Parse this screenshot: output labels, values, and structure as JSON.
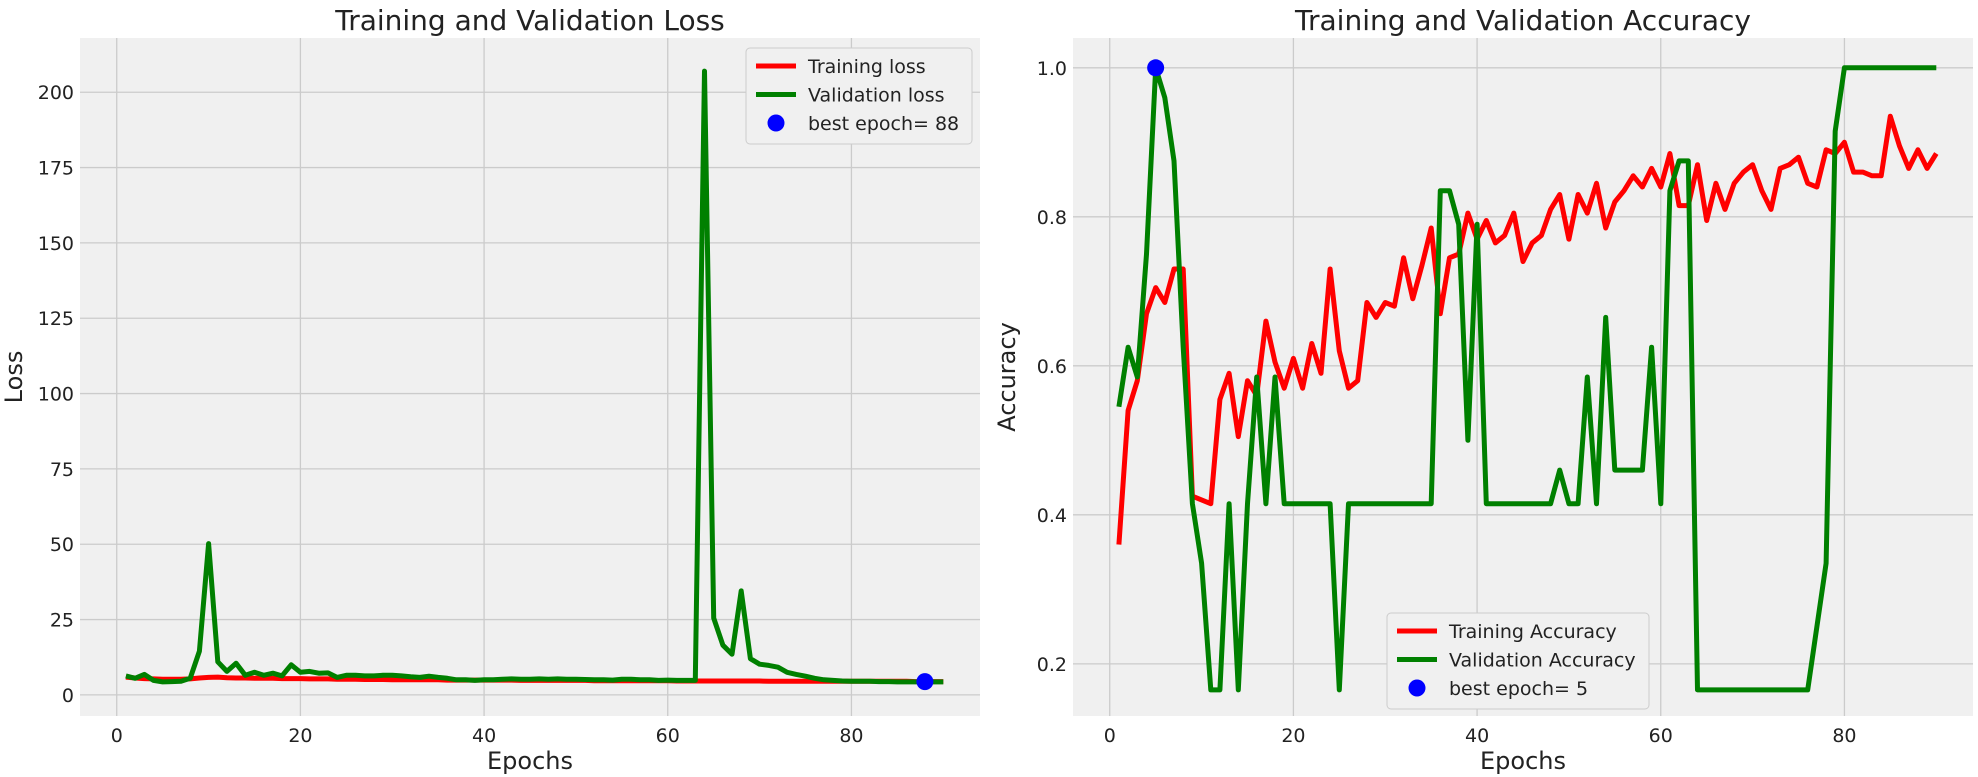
{
  "chart_data": [
    {
      "type": "line",
      "title": "Training and Validation Loss",
      "xlabel": "Epochs",
      "ylabel": "Loss",
      "xlim": [
        -4,
        94
      ],
      "ylim": [
        -7,
        218
      ],
      "xticks": [
        0,
        20,
        40,
        60,
        80
      ],
      "yticks": [
        0,
        25,
        50,
        75,
        100,
        125,
        150,
        175,
        200
      ],
      "grid": true,
      "legend_position": "top-right",
      "series": [
        {
          "name": "Training loss",
          "color": "#ff0000",
          "x": [
            1,
            2,
            3,
            4,
            5,
            6,
            7,
            8,
            9,
            10,
            11,
            12,
            13,
            14,
            15,
            16,
            17,
            18,
            19,
            20,
            21,
            22,
            23,
            24,
            25,
            26,
            27,
            28,
            29,
            30,
            31,
            32,
            33,
            34,
            35,
            36,
            37,
            38,
            39,
            40,
            41,
            42,
            43,
            44,
            45,
            46,
            47,
            48,
            49,
            50,
            51,
            52,
            53,
            54,
            55,
            56,
            57,
            58,
            59,
            60,
            61,
            62,
            63,
            64,
            65,
            66,
            67,
            68,
            69,
            70,
            71,
            72,
            73,
            74,
            75,
            76,
            77,
            78,
            79,
            80,
            81,
            82,
            83,
            84,
            85,
            86,
            87,
            88,
            89,
            90
          ],
          "y": [
            5.9,
            5.6,
            5.4,
            5.3,
            5.2,
            5.2,
            5.2,
            5.3,
            5.6,
            5.8,
            5.9,
            5.7,
            5.6,
            5.6,
            5.5,
            5.5,
            5.5,
            5.4,
            5.4,
            5.4,
            5.3,
            5.3,
            5.3,
            5.2,
            5.2,
            5.2,
            5.1,
            5.1,
            5.1,
            5.0,
            5.0,
            5.0,
            5.0,
            5.0,
            5.0,
            4.9,
            4.9,
            4.9,
            4.9,
            4.9,
            4.9,
            4.9,
            4.9,
            4.8,
            4.8,
            4.8,
            4.8,
            4.8,
            4.8,
            4.8,
            4.8,
            4.7,
            4.7,
            4.7,
            4.7,
            4.7,
            4.7,
            4.7,
            4.7,
            4.7,
            4.6,
            4.6,
            4.6,
            4.6,
            4.6,
            4.6,
            4.6,
            4.6,
            4.6,
            4.6,
            4.5,
            4.5,
            4.5,
            4.5,
            4.5,
            4.5,
            4.5,
            4.5,
            4.5,
            4.5,
            4.5,
            4.5,
            4.5,
            4.5,
            4.5,
            4.5,
            4.4,
            4.4,
            4.4,
            4.4
          ]
        },
        {
          "name": "Validation loss",
          "color": "#008000",
          "x": [
            1,
            2,
            3,
            4,
            5,
            6,
            7,
            8,
            9,
            10,
            11,
            12,
            13,
            14,
            15,
            16,
            17,
            18,
            19,
            20,
            21,
            22,
            23,
            24,
            25,
            26,
            27,
            28,
            29,
            30,
            31,
            32,
            33,
            34,
            35,
            36,
            37,
            38,
            39,
            40,
            41,
            42,
            43,
            44,
            45,
            46,
            47,
            48,
            49,
            50,
            51,
            52,
            53,
            54,
            55,
            56,
            57,
            58,
            59,
            60,
            61,
            62,
            63,
            64,
            65,
            66,
            67,
            68,
            69,
            70,
            71,
            72,
            73,
            74,
            75,
            76,
            77,
            78,
            79,
            80,
            81,
            82,
            83,
            84,
            85,
            86,
            87,
            88,
            89,
            90
          ],
          "y": [
            6.3,
            5.5,
            6.8,
            4.8,
            4.3,
            4.4,
            4.5,
            5.5,
            14.5,
            50.2,
            11,
            7.8,
            10.5,
            6.5,
            7.5,
            6.5,
            7.2,
            6.3,
            10,
            7.5,
            7.8,
            7.2,
            7.3,
            5.8,
            6.5,
            6.5,
            6.3,
            6.3,
            6.5,
            6.5,
            6.3,
            6.0,
            5.8,
            6.2,
            5.8,
            5.5,
            5.0,
            5.0,
            4.8,
            5.0,
            5.0,
            5.2,
            5.3,
            5.2,
            5.2,
            5.3,
            5.2,
            5.3,
            5.2,
            5.2,
            5.1,
            5.0,
            5.0,
            4.9,
            5.2,
            5.2,
            5.0,
            5.0,
            4.8,
            4.9,
            4.8,
            4.8,
            4.8,
            207,
            25.5,
            16.5,
            13.5,
            34.5,
            12,
            10.2,
            9.8,
            9.2,
            7.5,
            6.8,
            6.2,
            5.5,
            5.0,
            4.8,
            4.6,
            4.5,
            4.5,
            4.5,
            4.4,
            4.4,
            4.3,
            4.3,
            4.3,
            4.3,
            4.3,
            4.3
          ]
        }
      ],
      "best_point": {
        "name": "best epoch= 88",
        "x": 88,
        "y": 4.4,
        "color": "#0000ff"
      }
    },
    {
      "type": "line",
      "title": "Training and Validation Accuracy",
      "xlabel": "Epochs",
      "ylabel": "Accuracy",
      "xlim": [
        -4,
        94
      ],
      "ylim": [
        0.13,
        1.04
      ],
      "xticks": [
        0,
        20,
        40,
        60,
        80
      ],
      "yticks": [
        0.2,
        0.4,
        0.6,
        0.8,
        1.0
      ],
      "ytick_labels": [
        "0.2",
        "0.4",
        "0.6",
        "0.8",
        "1.0"
      ],
      "grid": true,
      "legend_position": "bottom-center",
      "series": [
        {
          "name": "Training Accuracy",
          "color": "#ff0000",
          "x": [
            1,
            2,
            3,
            4,
            5,
            6,
            7,
            8,
            9,
            10,
            11,
            12,
            13,
            14,
            15,
            16,
            17,
            18,
            19,
            20,
            21,
            22,
            23,
            24,
            25,
            26,
            27,
            28,
            29,
            30,
            31,
            32,
            33,
            34,
            35,
            36,
            37,
            38,
            39,
            40,
            41,
            42,
            43,
            44,
            45,
            46,
            47,
            48,
            49,
            50,
            51,
            52,
            53,
            54,
            55,
            56,
            57,
            58,
            59,
            60,
            61,
            62,
            63,
            64,
            65,
            66,
            67,
            68,
            69,
            70,
            71,
            72,
            73,
            74,
            75,
            76,
            77,
            78,
            79,
            80,
            81,
            82,
            83,
            84,
            85,
            86,
            87,
            88,
            89,
            90
          ],
          "y": [
            0.36,
            0.54,
            0.58,
            0.67,
            0.705,
            0.685,
            0.73,
            0.73,
            0.425,
            0.42,
            0.415,
            0.555,
            0.59,
            0.505,
            0.58,
            0.56,
            0.66,
            0.605,
            0.57,
            0.61,
            0.57,
            0.63,
            0.59,
            0.73,
            0.62,
            0.57,
            0.58,
            0.685,
            0.665,
            0.685,
            0.68,
            0.745,
            0.69,
            0.735,
            0.785,
            0.67,
            0.745,
            0.75,
            0.805,
            0.77,
            0.795,
            0.765,
            0.775,
            0.805,
            0.74,
            0.765,
            0.775,
            0.81,
            0.83,
            0.77,
            0.83,
            0.805,
            0.845,
            0.785,
            0.82,
            0.835,
            0.855,
            0.84,
            0.865,
            0.84,
            0.885,
            0.815,
            0.815,
            0.87,
            0.795,
            0.845,
            0.81,
            0.845,
            0.86,
            0.87,
            0.835,
            0.81,
            0.865,
            0.87,
            0.88,
            0.845,
            0.84,
            0.89,
            0.885,
            0.9,
            0.86,
            0.86,
            0.855,
            0.855,
            0.935,
            0.895,
            0.865,
            0.89,
            0.865,
            0.885
          ]
        },
        {
          "name": "Validation Accuracy",
          "color": "#008000",
          "x": [
            1,
            2,
            3,
            4,
            5,
            6,
            7,
            8,
            9,
            10,
            11,
            12,
            13,
            14,
            15,
            16,
            17,
            18,
            19,
            20,
            21,
            22,
            23,
            24,
            25,
            26,
            27,
            28,
            29,
            30,
            31,
            32,
            33,
            34,
            35,
            36,
            37,
            38,
            39,
            40,
            41,
            42,
            43,
            44,
            45,
            46,
            47,
            48,
            49,
            50,
            51,
            52,
            53,
            54,
            55,
            56,
            57,
            58,
            59,
            60,
            61,
            62,
            63,
            64,
            65,
            66,
            67,
            68,
            69,
            70,
            71,
            72,
            73,
            74,
            75,
            76,
            77,
            78,
            79,
            80,
            81,
            82,
            83,
            84,
            85,
            86,
            87,
            88,
            89,
            90
          ],
          "y": [
            0.545,
            0.625,
            0.585,
            0.75,
            1.0,
            0.96,
            0.875,
            0.625,
            0.415,
            0.335,
            0.165,
            0.165,
            0.415,
            0.165,
            0.415,
            0.585,
            0.415,
            0.585,
            0.415,
            0.415,
            0.415,
            0.415,
            0.415,
            0.415,
            0.165,
            0.415,
            0.415,
            0.415,
            0.415,
            0.415,
            0.415,
            0.415,
            0.415,
            0.415,
            0.415,
            0.835,
            0.835,
            0.79,
            0.5,
            0.79,
            0.415,
            0.415,
            0.415,
            0.415,
            0.415,
            0.415,
            0.415,
            0.415,
            0.46,
            0.415,
            0.415,
            0.585,
            0.415,
            0.665,
            0.46,
            0.46,
            0.46,
            0.46,
            0.625,
            0.415,
            0.835,
            0.875,
            0.875,
            0.165,
            0.165,
            0.165,
            0.165,
            0.165,
            0.165,
            0.165,
            0.165,
            0.165,
            0.165,
            0.165,
            0.165,
            0.165,
            0.25,
            0.335,
            0.915,
            1.0,
            1.0,
            1.0,
            1.0,
            1.0,
            1.0,
            1.0,
            1.0,
            1.0,
            1.0,
            1.0
          ]
        }
      ],
      "best_point": {
        "name": "best epoch= 5",
        "x": 5,
        "y": 1.0,
        "color": "#0000ff"
      }
    }
  ]
}
